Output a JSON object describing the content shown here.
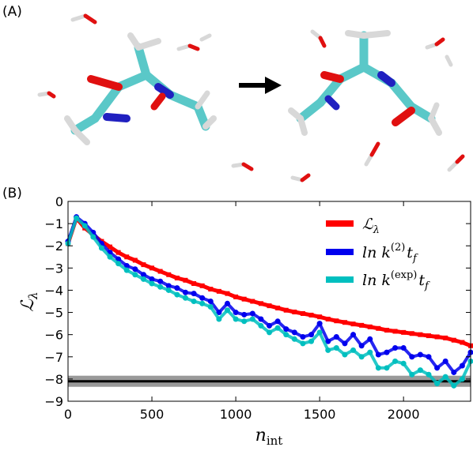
{
  "panel_a": {
    "label": "(A)"
  },
  "panel_b": {
    "label": "(B)"
  },
  "chart_data": {
    "type": "line",
    "title": "",
    "xlabel": "n",
    "xlabel_sub": "int",
    "ylabel": "ℒ",
    "ylabel_sub": "λ",
    "xlim": [
      0,
      2400
    ],
    "ylim": [
      -9,
      0
    ],
    "x_ticks": [
      0,
      500,
      1000,
      1500,
      2000
    ],
    "y_ticks": [
      0,
      -1,
      -2,
      -3,
      -4,
      -5,
      -6,
      -7,
      -8,
      -9
    ],
    "grid": false,
    "legend_position": "top-right",
    "x": [
      0,
      50,
      100,
      150,
      200,
      250,
      300,
      350,
      400,
      450,
      500,
      550,
      600,
      650,
      700,
      750,
      800,
      850,
      900,
      950,
      1000,
      1050,
      1100,
      1150,
      1200,
      1250,
      1300,
      1350,
      1400,
      1450,
      1500,
      1550,
      1600,
      1650,
      1700,
      1750,
      1800,
      1850,
      1900,
      1950,
      2000,
      2050,
      2100,
      2150,
      2200,
      2250,
      2300,
      2350,
      2400
    ],
    "series": [
      {
        "name": "ℒλ",
        "legend_main": "ℒ",
        "legend_sub": "λ",
        "color": "#ff0000",
        "values": [
          -1.9,
          -0.75,
          -1.2,
          -1.5,
          -1.8,
          -2.05,
          -2.3,
          -2.5,
          -2.65,
          -2.85,
          -3.0,
          -3.15,
          -3.3,
          -3.45,
          -3.55,
          -3.7,
          -3.8,
          -3.95,
          -4.05,
          -4.15,
          -4.3,
          -4.4,
          -4.5,
          -4.6,
          -4.7,
          -4.8,
          -4.9,
          -4.98,
          -5.05,
          -5.12,
          -5.2,
          -5.3,
          -5.38,
          -5.45,
          -5.52,
          -5.58,
          -5.65,
          -5.72,
          -5.8,
          -5.85,
          -5.9,
          -5.95,
          -6.0,
          -6.05,
          -6.1,
          -6.15,
          -6.25,
          -6.35,
          -6.5
        ]
      },
      {
        "name": "ln k(2) tf",
        "legend_main": "ln k",
        "legend_sup": "(2)",
        "legend_tail": "t",
        "legend_tail_sub": "f",
        "color": "#0000ee",
        "values": [
          -1.8,
          -0.7,
          -1.0,
          -1.4,
          -1.9,
          -2.3,
          -2.6,
          -2.9,
          -3.05,
          -3.3,
          -3.5,
          -3.6,
          -3.8,
          -3.9,
          -4.1,
          -4.15,
          -4.35,
          -4.5,
          -5.0,
          -4.6,
          -5.0,
          -5.1,
          -5.05,
          -5.3,
          -5.6,
          -5.4,
          -5.75,
          -5.9,
          -6.1,
          -6.0,
          -5.5,
          -6.3,
          -6.1,
          -6.4,
          -6.0,
          -6.5,
          -6.2,
          -6.9,
          -6.8,
          -6.6,
          -6.6,
          -7.0,
          -6.9,
          -7.0,
          -7.5,
          -7.2,
          -7.7,
          -7.4,
          -6.8
        ]
      },
      {
        "name": "ln k(exp) tf",
        "legend_main": "ln k",
        "legend_sup": "(exp)",
        "legend_tail": "t",
        "legend_tail_sub": "f",
        "color": "#00bfbf",
        "values": [
          -1.9,
          -0.75,
          -1.1,
          -1.6,
          -2.1,
          -2.5,
          -2.8,
          -3.1,
          -3.3,
          -3.5,
          -3.7,
          -3.85,
          -4.0,
          -4.2,
          -4.35,
          -4.5,
          -4.6,
          -4.75,
          -5.3,
          -4.9,
          -5.3,
          -5.4,
          -5.3,
          -5.6,
          -5.9,
          -5.7,
          -6.0,
          -6.2,
          -6.4,
          -6.3,
          -5.9,
          -6.7,
          -6.6,
          -6.9,
          -6.7,
          -7.0,
          -6.8,
          -7.5,
          -7.5,
          -7.2,
          -7.3,
          -7.8,
          -7.6,
          -7.8,
          -8.2,
          -7.9,
          -8.3,
          -8.0,
          -7.2
        ]
      }
    ],
    "reference_band": {
      "value": -8.1,
      "lower": -8.35,
      "upper": -7.85,
      "line_color": "#000000",
      "band_color": "#999999"
    }
  }
}
